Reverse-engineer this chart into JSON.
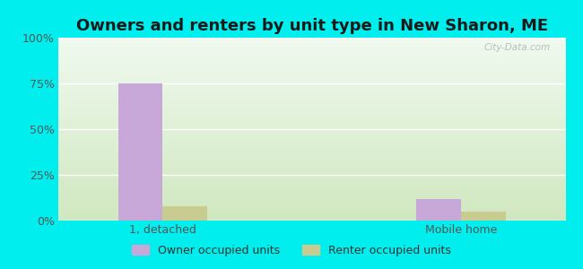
{
  "title": "Owners and renters by unit type in New Sharon, ME",
  "categories": [
    "1, detached",
    "Mobile home"
  ],
  "owner_values": [
    75,
    12
  ],
  "renter_values": [
    8,
    5
  ],
  "owner_color": "#c8a8d8",
  "renter_color": "#c8cc90",
  "ylim": [
    0,
    100
  ],
  "yticks": [
    0,
    25,
    50,
    75,
    100
  ],
  "ytick_labels": [
    "0%",
    "25%",
    "50%",
    "75%",
    "100%"
  ],
  "legend_owner": "Owner occupied units",
  "legend_renter": "Renter occupied units",
  "outer_bg": "#00eeee",
  "bar_width": 0.3,
  "title_fontsize": 13,
  "tick_fontsize": 9,
  "legend_fontsize": 9,
  "watermark": "City-Data.com"
}
